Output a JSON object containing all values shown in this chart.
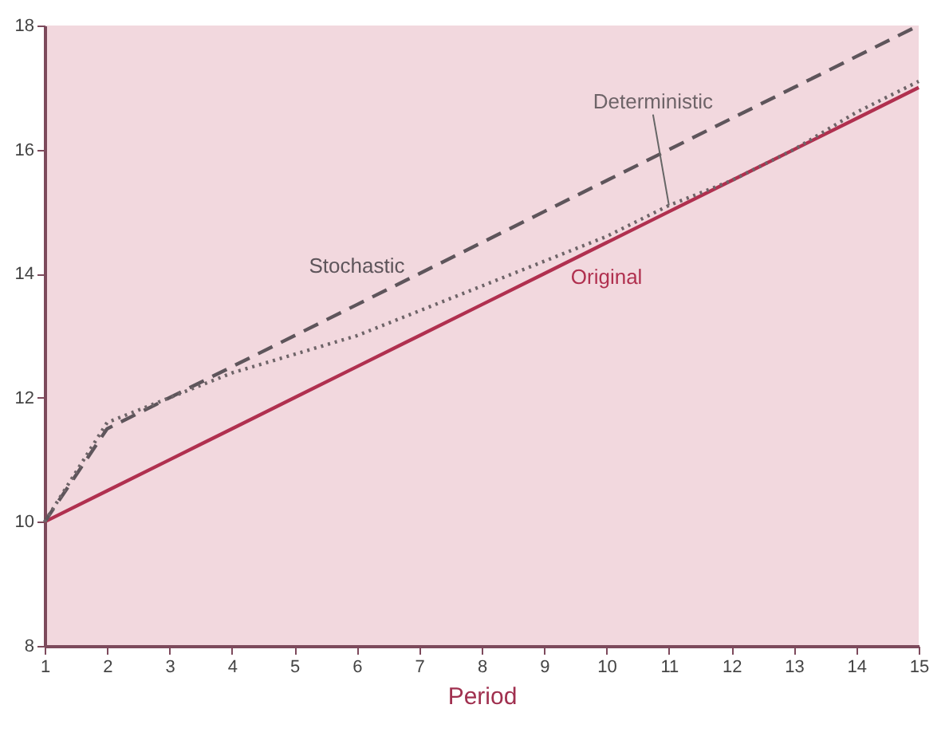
{
  "chart_data": {
    "type": "line",
    "xlabel": "Period",
    "x": [
      1,
      2,
      3,
      4,
      5,
      6,
      7,
      8,
      9,
      10,
      11,
      12,
      13,
      14,
      15
    ],
    "xlim": [
      1,
      15
    ],
    "xticks": [
      1,
      2,
      3,
      4,
      5,
      6,
      7,
      8,
      9,
      10,
      11,
      12,
      13,
      14,
      15
    ],
    "ylim": [
      8,
      18
    ],
    "yticks": [
      8,
      10,
      12,
      14,
      16,
      18
    ],
    "series": [
      {
        "name": "Original",
        "color": "#b0304f",
        "line_style": "solid",
        "values": [
          10,
          10.5,
          11,
          11.5,
          12,
          12.5,
          13,
          13.5,
          14,
          14.5,
          15,
          15.5,
          16,
          16.5,
          17
        ]
      },
      {
        "name": "Stochastic",
        "color": "#5e555b",
        "line_style": "dashed",
        "values": [
          10,
          11.5,
          12,
          12.5,
          13,
          13.5,
          14,
          14.5,
          15,
          15.5,
          16,
          16.5,
          17,
          17.5,
          18
        ]
      },
      {
        "name": "Deterministic",
        "color": "#6e6468",
        "line_style": "dotted",
        "values": [
          10,
          11.6,
          12,
          12.4,
          12.7,
          13,
          13.4,
          13.8,
          14.2,
          14.6,
          15.1,
          15.5,
          16,
          16.6,
          17.1
        ]
      }
    ]
  }
}
